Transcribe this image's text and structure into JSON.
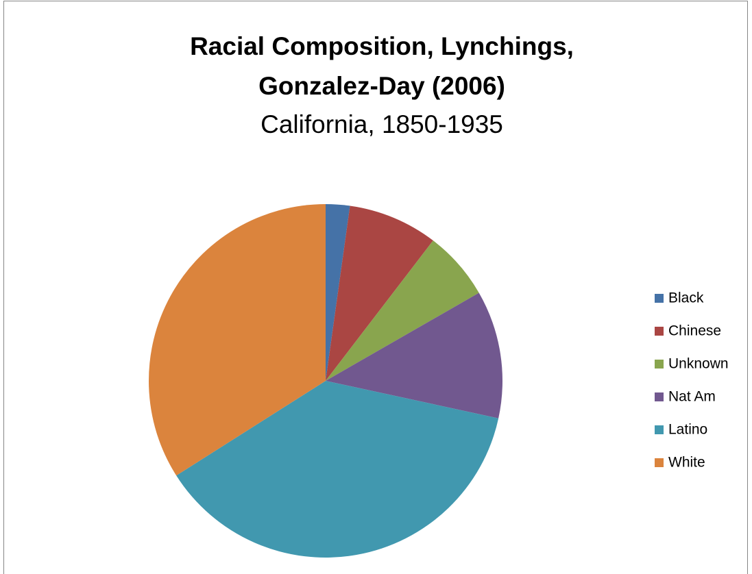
{
  "chart_data": {
    "type": "pie",
    "title": [
      "Racial Composition, Lynchings,",
      "Gonzalez-Day (2006)"
    ],
    "subtitle": "California, 1850-1935",
    "categories": [
      "Black",
      "Chinese",
      "Unknown",
      "Nat Am",
      "Latino",
      "White"
    ],
    "values": [
      2.2,
      8.2,
      6.3,
      11.7,
      37.6,
      34.0
    ],
    "colors": [
      "#4572a7",
      "#aa4643",
      "#89a54e",
      "#71588f",
      "#4198af",
      "#db843d"
    ],
    "legend": "right"
  }
}
